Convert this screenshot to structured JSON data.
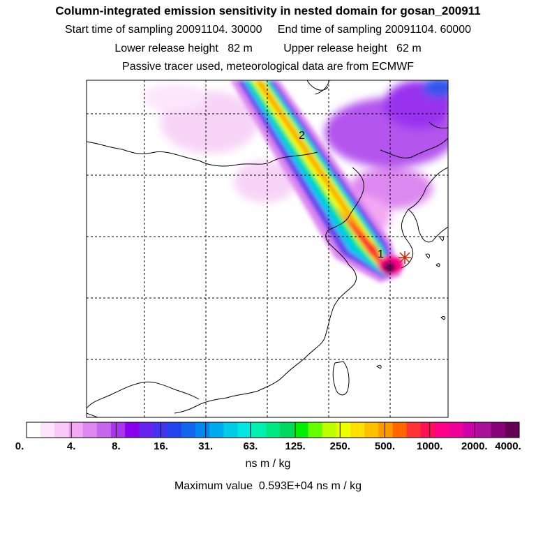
{
  "header": {
    "title": "Column-integrated emission sensitivity in nested domain for gosan_200911",
    "line2": "Start time of sampling 20091104. 30000     End time of sampling 20091104. 60000",
    "line3": "Lower release height   82 m          Upper release height   62 m",
    "line4": "Passive tracer used, meteorological data are from ECMWF"
  },
  "markers": {
    "label_1": "1",
    "label_2": "2"
  },
  "colorbar": {
    "colors": [
      "#ffffff",
      "#fde4fd",
      "#f9c8f9",
      "#f2a8f2",
      "#dd88f0",
      "#c566ee",
      "#aa33ee",
      "#8800ee",
      "#6622ee",
      "#4433ee",
      "#2244ee",
      "#1166ee",
      "#0088ee",
      "#00aaee",
      "#00cce8",
      "#00e8e0",
      "#00f0b0",
      "#00e880",
      "#00d860",
      "#00f000",
      "#66ff00",
      "#bbff00",
      "#eeff00",
      "#ffe000",
      "#ffc000",
      "#ff9900",
      "#ff6600",
      "#ff3333",
      "#ff1155",
      "#ff0088",
      "#ee0099",
      "#cc00aa",
      "#aa1199",
      "#880077",
      "#660055"
    ],
    "tick_labels": [
      "0.",
      "4.",
      "8.",
      "16.",
      "31.",
      "63.",
      "125.",
      "250.",
      "500.",
      "1000.",
      "2000.",
      "4000."
    ],
    "units": "ns m / kg"
  },
  "footer": {
    "max_value": "Maximum value  0.593E+04 ns m / kg"
  }
}
